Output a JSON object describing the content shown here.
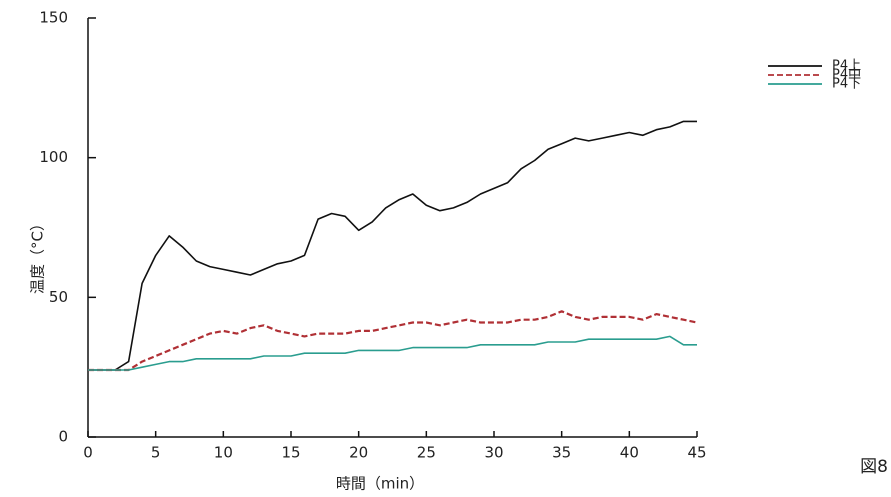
{
  "chart_data": {
    "type": "line",
    "x_label": "時間（min）",
    "y_label": "温度（°C）",
    "caption": "図8",
    "x": [
      0,
      1,
      2,
      3,
      4,
      5,
      6,
      7,
      8,
      9,
      10,
      11,
      12,
      13,
      14,
      15,
      16,
      17,
      18,
      19,
      20,
      21,
      22,
      23,
      24,
      25,
      26,
      27,
      28,
      29,
      30,
      31,
      32,
      33,
      34,
      35,
      36,
      37,
      38,
      39,
      40,
      41,
      42,
      43,
      44,
      45
    ],
    "series": [
      {
        "name": "P4上",
        "color": "#111111",
        "line_style": "solid",
        "values": [
          24,
          24,
          24,
          27,
          55,
          65,
          72,
          68,
          63,
          61,
          60,
          59,
          58,
          60,
          62,
          63,
          65,
          78,
          80,
          79,
          74,
          77,
          82,
          85,
          87,
          83,
          81,
          82,
          84,
          87,
          89,
          91,
          96,
          99,
          103,
          105,
          107,
          106,
          107,
          108,
          109,
          108,
          110,
          111,
          113,
          113
        ]
      },
      {
        "name": "P4中",
        "color": "#b03035",
        "line_style": "dashed",
        "values": [
          24,
          24,
          24,
          24,
          27,
          29,
          31,
          33,
          35,
          37,
          38,
          37,
          39,
          40,
          38,
          37,
          36,
          37,
          37,
          37,
          38,
          38,
          39,
          40,
          41,
          41,
          40,
          41,
          42,
          41,
          41,
          41,
          42,
          42,
          43,
          45,
          43,
          42,
          43,
          43,
          43,
          42,
          44,
          43,
          42,
          41
        ]
      },
      {
        "name": "P4下",
        "color": "#2a9d8f",
        "line_style": "solid",
        "values": [
          24,
          24,
          24,
          24,
          25,
          26,
          27,
          27,
          28,
          28,
          28,
          28,
          28,
          29,
          29,
          29,
          30,
          30,
          30,
          30,
          31,
          31,
          31,
          31,
          32,
          32,
          32,
          32,
          32,
          33,
          33,
          33,
          33,
          33,
          34,
          34,
          34,
          35,
          35,
          35,
          35,
          35,
          35,
          36,
          33,
          33
        ]
      }
    ],
    "xlim": [
      0,
      45
    ],
    "ylim": [
      0,
      150
    ],
    "xticks": [
      0,
      5,
      10,
      15,
      20,
      25,
      30,
      35,
      40,
      45
    ],
    "yticks": [
      0,
      50,
      100,
      150
    ],
    "grid": false
  }
}
